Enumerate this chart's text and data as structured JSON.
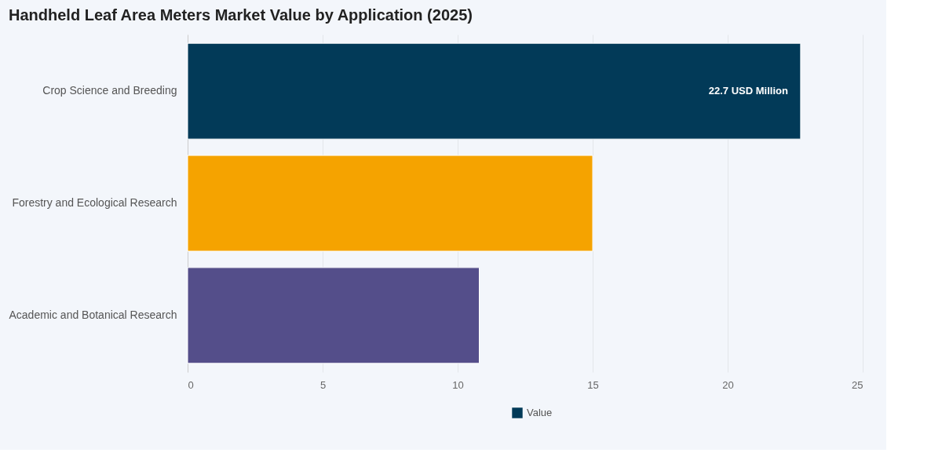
{
  "chart_data": {
    "type": "bar",
    "orientation": "horizontal",
    "title": "Handheld Leaf Area Meters Market Value by Application (2025)",
    "categories": [
      "Crop Science and Breeding",
      "Forestry and Ecological Research",
      "Academic and Botanical Research"
    ],
    "series": [
      {
        "name": "Value",
        "color": "#023a58",
        "colors": [
          "#023a58",
          "#f5a300",
          "#544e8a"
        ],
        "values": [
          22.7,
          15.0,
          10.8
        ],
        "value_labels": [
          "22.7 USD Million",
          null,
          null
        ]
      }
    ],
    "xlim": [
      0,
      25
    ],
    "xticks": [
      0,
      5,
      10,
      15,
      20,
      25
    ],
    "grid": "x",
    "legend": "bottom"
  }
}
